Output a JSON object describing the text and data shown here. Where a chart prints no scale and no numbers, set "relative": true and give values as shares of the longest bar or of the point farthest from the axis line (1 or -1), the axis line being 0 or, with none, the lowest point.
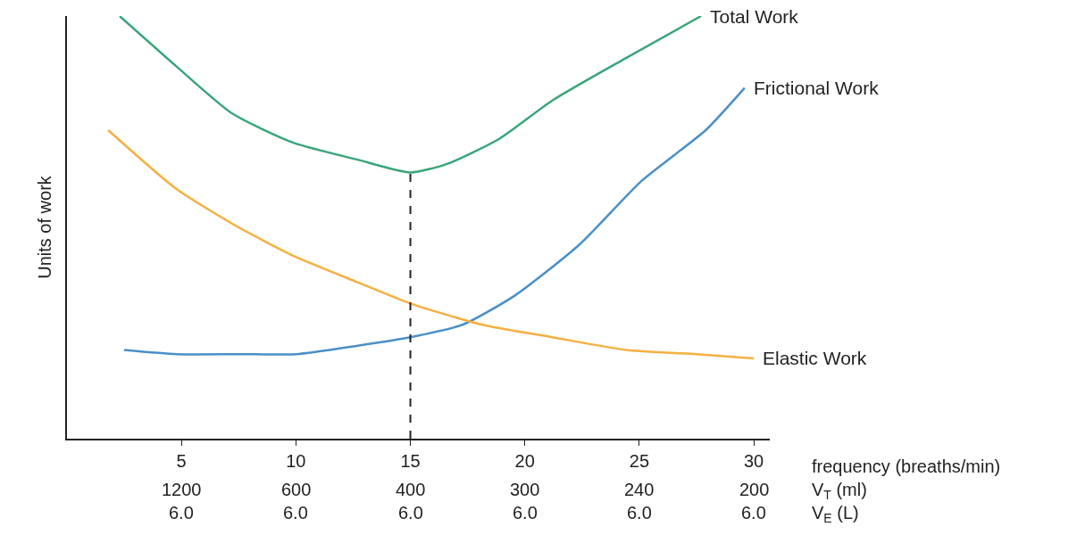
{
  "chart_data": {
    "type": "line",
    "relative": true,
    "ylabel": "Units of work",
    "xlabel": "frequency (breaths/min)",
    "xlim": [
      0,
      30.7
    ],
    "annotations": [
      "V$_{T}$ (ml)",
      "V$_{E}$ (L)",
      "1200",
      "600",
      "400",
      "300",
      "240",
      "200",
      "6.0",
      "6.0",
      "6.0",
      "6.0",
      "6.0",
      "6.0"
    ],
    "xticks": [
      5,
      10,
      15,
      20,
      25,
      30
    ],
    "series": [
      {
        "name": "Total Work",
        "color": "#3aa57a",
        "x": [
          2.3,
          4.8,
          7.2,
          9.9,
          12.7,
          15,
          16.6,
          18.9,
          21.2,
          24.4,
          27.7
        ],
        "values": [
          1.0,
          0.88,
          0.77,
          0.7,
          0.66,
          0.63,
          0.65,
          0.71,
          0.8,
          0.9,
          1.0
        ]
      },
      {
        "name": "Frictional Work",
        "color": "#4a90c8",
        "x": [
          2.5,
          4.8,
          7.5,
          10,
          12.7,
          15,
          17.3,
          19.6,
          22.4,
          25.1,
          27.9,
          29.6
        ],
        "values": [
          0.21,
          0.2,
          0.2,
          0.2,
          0.22,
          0.24,
          0.27,
          0.34,
          0.46,
          0.61,
          0.73,
          0.83
        ]
      },
      {
        "name": "Elastic Work",
        "color": "#f5b041",
        "x": [
          1.8,
          4.8,
          7.5,
          10,
          12.7,
          15,
          18.1,
          21.2,
          24.4,
          27.5,
          30
        ],
        "values": [
          0.73,
          0.59,
          0.5,
          0.43,
          0.37,
          0.32,
          0.27,
          0.24,
          0.21,
          0.2,
          0.19
        ]
      }
    ],
    "ref_lines": [
      {
        "axis": "x",
        "value": 15,
        "color": "#222222",
        "line_style": "dashed"
      }
    ],
    "legend": false,
    "grid": false,
    "marker": "none",
    "line_style": "solid"
  }
}
